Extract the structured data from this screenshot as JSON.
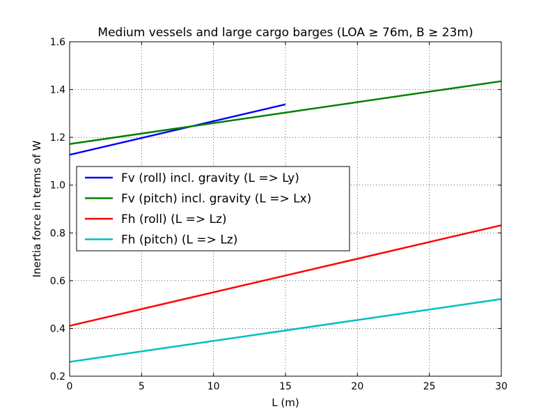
{
  "chart_data": {
    "type": "line",
    "title": "Medium vessels and large cargo barges (LOA ≥ 76m, B ≥ 23m)",
    "xlabel": "L (m)",
    "ylabel": "Inertia force in terms of W",
    "xlim": [
      0,
      30
    ],
    "ylim": [
      0.2,
      1.6
    ],
    "xticks": [
      0,
      5,
      10,
      15,
      20,
      25,
      30
    ],
    "yticks": [
      0.2,
      0.4,
      0.6,
      0.8,
      1.0,
      1.2,
      1.4,
      1.6
    ],
    "xtick_labels": [
      "0",
      "5",
      "10",
      "15",
      "20",
      "25",
      "30"
    ],
    "ytick_labels": [
      "0.2",
      "0.4",
      "0.6",
      "0.8",
      "1.0",
      "1.2",
      "1.4",
      "1.6"
    ],
    "grid": true,
    "legend_position": "center-left",
    "series": [
      {
        "name": "Fv (roll) incl. gravity (L => Ly)",
        "color": "#0000ff",
        "x": [
          0,
          15
        ],
        "y": [
          1.127,
          1.338
        ]
      },
      {
        "name": "Fv (pitch) incl. gravity (L => Lx)",
        "color": "#008000",
        "x": [
          0,
          30
        ],
        "y": [
          1.172,
          1.435
        ]
      },
      {
        "name": "Fh (roll) (L => Lz)",
        "color": "#ff0000",
        "x": [
          0,
          30
        ],
        "y": [
          0.411,
          0.832
        ]
      },
      {
        "name": "Fh (pitch) (L => Lz)",
        "color": "#00bfbf",
        "x": [
          0,
          30
        ],
        "y": [
          0.26,
          0.523
        ]
      }
    ]
  }
}
